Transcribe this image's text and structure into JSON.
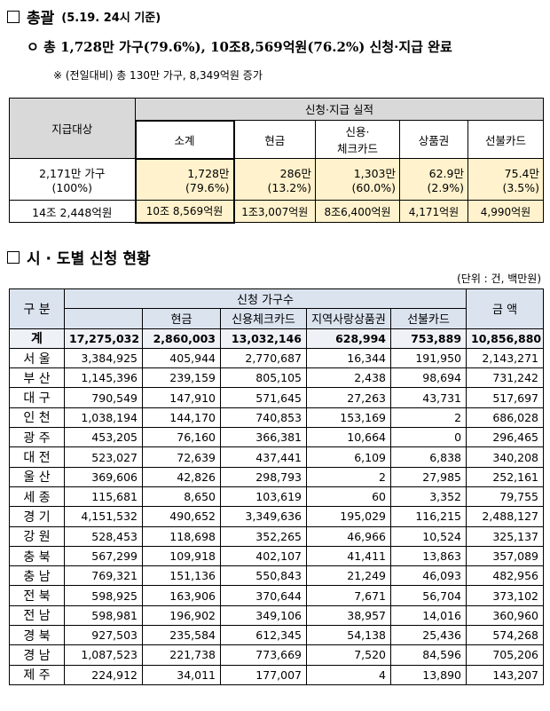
{
  "section1": {
    "title": "총괄",
    "basis": "(5.19. 24시 기준)",
    "summary": {
      "marker": "ㅇ",
      "text": "총 1,728만 가구(79.6%), 10조8,569억원(76.2%) 신청·지급 완료"
    },
    "note": "※ (전일대비) 총 130만 가구, 8,349억원 증가"
  },
  "table1": {
    "header": {
      "target": "지급대상",
      "group": "신청·지급 실적",
      "columns": [
        "소계",
        "현금",
        "신용·\n체크카드",
        "상품권",
        "선불카드"
      ]
    },
    "rows": [
      [
        "2,171만 가구\n(100%)",
        "1,728만\n(79.6%)",
        "286만\n(13.2%)",
        "1,303만\n(60.0%)",
        "62.9만\n(2.9%)",
        "75.4만\n(3.5%)"
      ],
      [
        "14조 2,448억원",
        "10조 8,569억원",
        "1조3,007억원",
        "8조6,400억원",
        "4,171억원",
        "4,990억원"
      ]
    ]
  },
  "section2": {
    "title": "시 · 도별 신청 현황",
    "unit": "(단위 : 건, 백만원)"
  },
  "table2": {
    "header": {
      "region": "구 분",
      "group": "신청 가구수",
      "amount": "금 액",
      "columns": [
        "현금",
        "신용체크카드",
        "지역사랑상품권",
        "선불카드"
      ]
    },
    "rows": [
      [
        "계",
        "17,275,032",
        "2,860,003",
        "13,032,146",
        "628,994",
        "753,889",
        "10,856,880"
      ],
      [
        "서 울",
        "3,384,925",
        "405,944",
        "2,770,687",
        "16,344",
        "191,950",
        "2,143,271"
      ],
      [
        "부 산",
        "1,145,396",
        "239,159",
        "805,105",
        "2,438",
        "98,694",
        "731,242"
      ],
      [
        "대 구",
        "790,549",
        "147,910",
        "571,645",
        "27,263",
        "43,731",
        "517,697"
      ],
      [
        "인 천",
        "1,038,194",
        "144,170",
        "740,853",
        "153,169",
        "2",
        "686,028"
      ],
      [
        "광 주",
        "453,205",
        "76,160",
        "366,381",
        "10,664",
        "0",
        "296,465"
      ],
      [
        "대 전",
        "523,027",
        "72,639",
        "437,441",
        "6,109",
        "6,838",
        "340,208"
      ],
      [
        "울 산",
        "369,606",
        "42,826",
        "298,793",
        "2",
        "27,985",
        "252,161"
      ],
      [
        "세 종",
        "115,681",
        "8,650",
        "103,619",
        "60",
        "3,352",
        "79,755"
      ],
      [
        "경 기",
        "4,151,532",
        "490,652",
        "3,349,636",
        "195,029",
        "116,215",
        "2,488,127"
      ],
      [
        "강 원",
        "528,453",
        "118,698",
        "352,265",
        "46,966",
        "10,524",
        "325,137"
      ],
      [
        "충 북",
        "567,299",
        "109,918",
        "402,107",
        "41,411",
        "13,863",
        "357,089"
      ],
      [
        "충 남",
        "769,321",
        "151,136",
        "550,843",
        "21,249",
        "46,093",
        "482,956"
      ],
      [
        "전 북",
        "598,925",
        "163,906",
        "370,644",
        "7,671",
        "56,704",
        "373,102"
      ],
      [
        "전 남",
        "598,981",
        "196,902",
        "349,106",
        "38,957",
        "14,016",
        "360,960"
      ],
      [
        "경 북",
        "927,503",
        "235,584",
        "612,345",
        "54,138",
        "25,436",
        "574,268"
      ],
      [
        "경 남",
        "1,087,523",
        "221,738",
        "773,669",
        "7,520",
        "84,596",
        "705,206"
      ],
      [
        "제 주",
        "224,912",
        "34,011",
        "177,007",
        "4",
        "13,890",
        "143,207"
      ]
    ]
  }
}
